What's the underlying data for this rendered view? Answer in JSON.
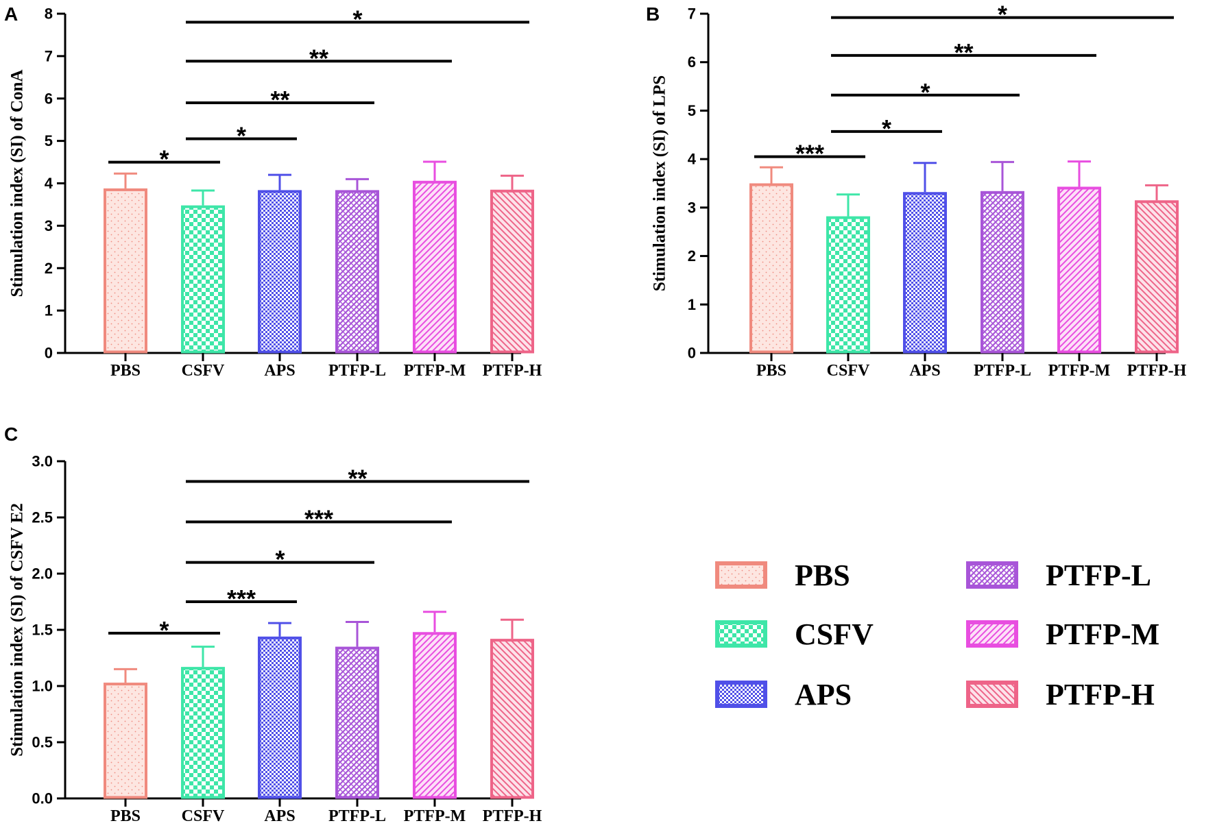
{
  "colors": {
    "PBS": "#f08a7e",
    "CSFV": "#3ee6a8",
    "APS": "#5050e8",
    "PTFP-L": "#a855d8",
    "PTFP-M": "#e84ee0",
    "PTFP-H": "#ee6488",
    "sig": "#000000"
  },
  "legend": {
    "items": [
      {
        "label": "PBS",
        "key": "PBS"
      },
      {
        "label": "CSFV",
        "key": "CSFV"
      },
      {
        "label": "APS",
        "key": "APS"
      },
      {
        "label": "PTFP-L",
        "key": "PTFP-L"
      },
      {
        "label": "PTFP-M",
        "key": "PTFP-M"
      },
      {
        "label": "PTFP-H",
        "key": "PTFP-H"
      }
    ]
  },
  "chart_data": [
    {
      "panel": "A",
      "type": "bar",
      "ylabel": "Stimulation index (SI) of ConA",
      "ylim": [
        0,
        8
      ],
      "yticks": [
        "0",
        "1",
        "2",
        "3",
        "4",
        "5",
        "6",
        "7",
        "8"
      ],
      "categories": [
        "PBS",
        "CSFV",
        "APS",
        "PTFP-L",
        "PTFP-M",
        "PTFP-H"
      ],
      "values": [
        3.88,
        3.48,
        3.84,
        3.84,
        4.06,
        3.85
      ],
      "errors": [
        0.35,
        0.35,
        0.36,
        0.26,
        0.45,
        0.33
      ],
      "significance": [
        {
          "from": 0,
          "to": 1,
          "y": 4.5,
          "label": "*"
        },
        {
          "from": 1,
          "to": 2,
          "y": 5.05,
          "label": "*"
        },
        {
          "from": 1,
          "to": 3,
          "y": 5.9,
          "label": "**"
        },
        {
          "from": 1,
          "to": 4,
          "y": 6.88,
          "label": "**"
        },
        {
          "from": 1,
          "to": 5,
          "y": 7.8,
          "label": "*"
        }
      ]
    },
    {
      "panel": "B",
      "type": "bar",
      "ylabel": "Stimulation index (SI) of LPS",
      "ylim": [
        0,
        7
      ],
      "yticks": [
        "0",
        "1",
        "2",
        "3",
        "4",
        "5",
        "6",
        "7"
      ],
      "categories": [
        "PBS",
        "CSFV",
        "APS",
        "PTFP-L",
        "PTFP-M",
        "PTFP-H"
      ],
      "values": [
        3.5,
        2.82,
        3.32,
        3.34,
        3.43,
        3.15
      ],
      "errors": [
        0.33,
        0.45,
        0.6,
        0.6,
        0.52,
        0.31
      ],
      "significance": [
        {
          "from": 0,
          "to": 1,
          "y": 4.05,
          "label": "***"
        },
        {
          "from": 1,
          "to": 2,
          "y": 4.57,
          "label": "*"
        },
        {
          "from": 1,
          "to": 3,
          "y": 5.32,
          "label": "*"
        },
        {
          "from": 1,
          "to": 4,
          "y": 6.14,
          "label": "**"
        },
        {
          "from": 1,
          "to": 5,
          "y": 6.92,
          "label": "*"
        }
      ]
    },
    {
      "panel": "C",
      "type": "bar",
      "ylabel": "Stimulation index (SI) of CSFV E2",
      "ylim": [
        0,
        3
      ],
      "yticks": [
        "0.0",
        "0.5",
        "1.0",
        "1.5",
        "2.0",
        "2.5",
        "3.0"
      ],
      "categories": [
        "PBS",
        "CSFV",
        "APS",
        "PTFP-L",
        "PTFP-M",
        "PTFP-H"
      ],
      "values": [
        1.03,
        1.17,
        1.44,
        1.35,
        1.48,
        1.42
      ],
      "errors": [
        0.12,
        0.18,
        0.12,
        0.22,
        0.18,
        0.17
      ],
      "significance": [
        {
          "from": 0,
          "to": 1,
          "y": 1.47,
          "label": "*"
        },
        {
          "from": 1,
          "to": 2,
          "y": 1.75,
          "label": "***"
        },
        {
          "from": 1,
          "to": 3,
          "y": 2.1,
          "label": "*"
        },
        {
          "from": 1,
          "to": 4,
          "y": 2.46,
          "label": "***"
        },
        {
          "from": 1,
          "to": 5,
          "y": 2.82,
          "label": "**"
        }
      ]
    }
  ]
}
